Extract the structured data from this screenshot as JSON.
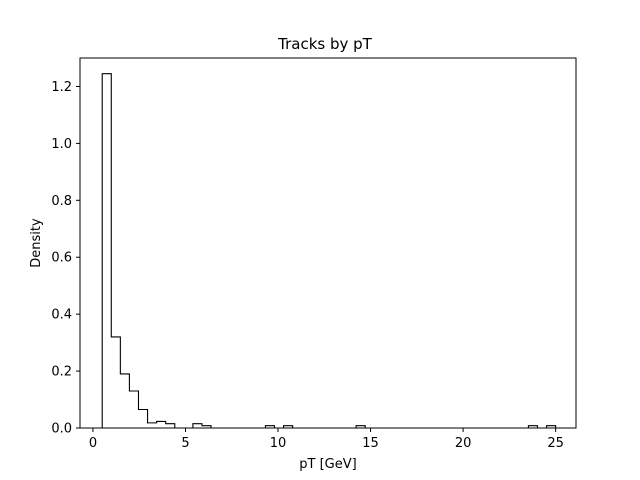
{
  "chart_data": {
    "type": "bar",
    "histtype": "step",
    "title": "Tracks by pT",
    "xlabel": "pT [GeV]",
    "ylabel": "Density",
    "xlim": [
      -0.7,
      26.1
    ],
    "ylim": [
      0,
      1.3
    ],
    "xticks": [
      0,
      5,
      10,
      15,
      20,
      25
    ],
    "xtick_labels": [
      "0",
      "5",
      "10",
      "15",
      "20",
      "25"
    ],
    "yticks": [
      0,
      0.2,
      0.4,
      0.6,
      0.8,
      1.0,
      1.2
    ],
    "ytick_labels": [
      "0.0",
      "0.2",
      "0.4",
      "0.6",
      "0.8",
      "1.0",
      "1.2"
    ],
    "bin_start": 0.5,
    "bin_width": 0.49,
    "values": [
      1.245,
      0.32,
      0.19,
      0.13,
      0.065,
      0.018,
      0.023,
      0.015,
      0,
      0,
      0.015,
      0.008,
      0,
      0,
      0,
      0,
      0,
      0,
      0.008,
      0,
      0.008,
      0,
      0,
      0,
      0,
      0,
      0,
      0,
      0.008,
      0,
      0,
      0,
      0,
      0,
      0,
      0,
      0,
      0,
      0,
      0,
      0,
      0,
      0,
      0,
      0,
      0,
      0,
      0.008,
      0,
      0.008
    ],
    "grid": false,
    "line_color": "#000000"
  }
}
